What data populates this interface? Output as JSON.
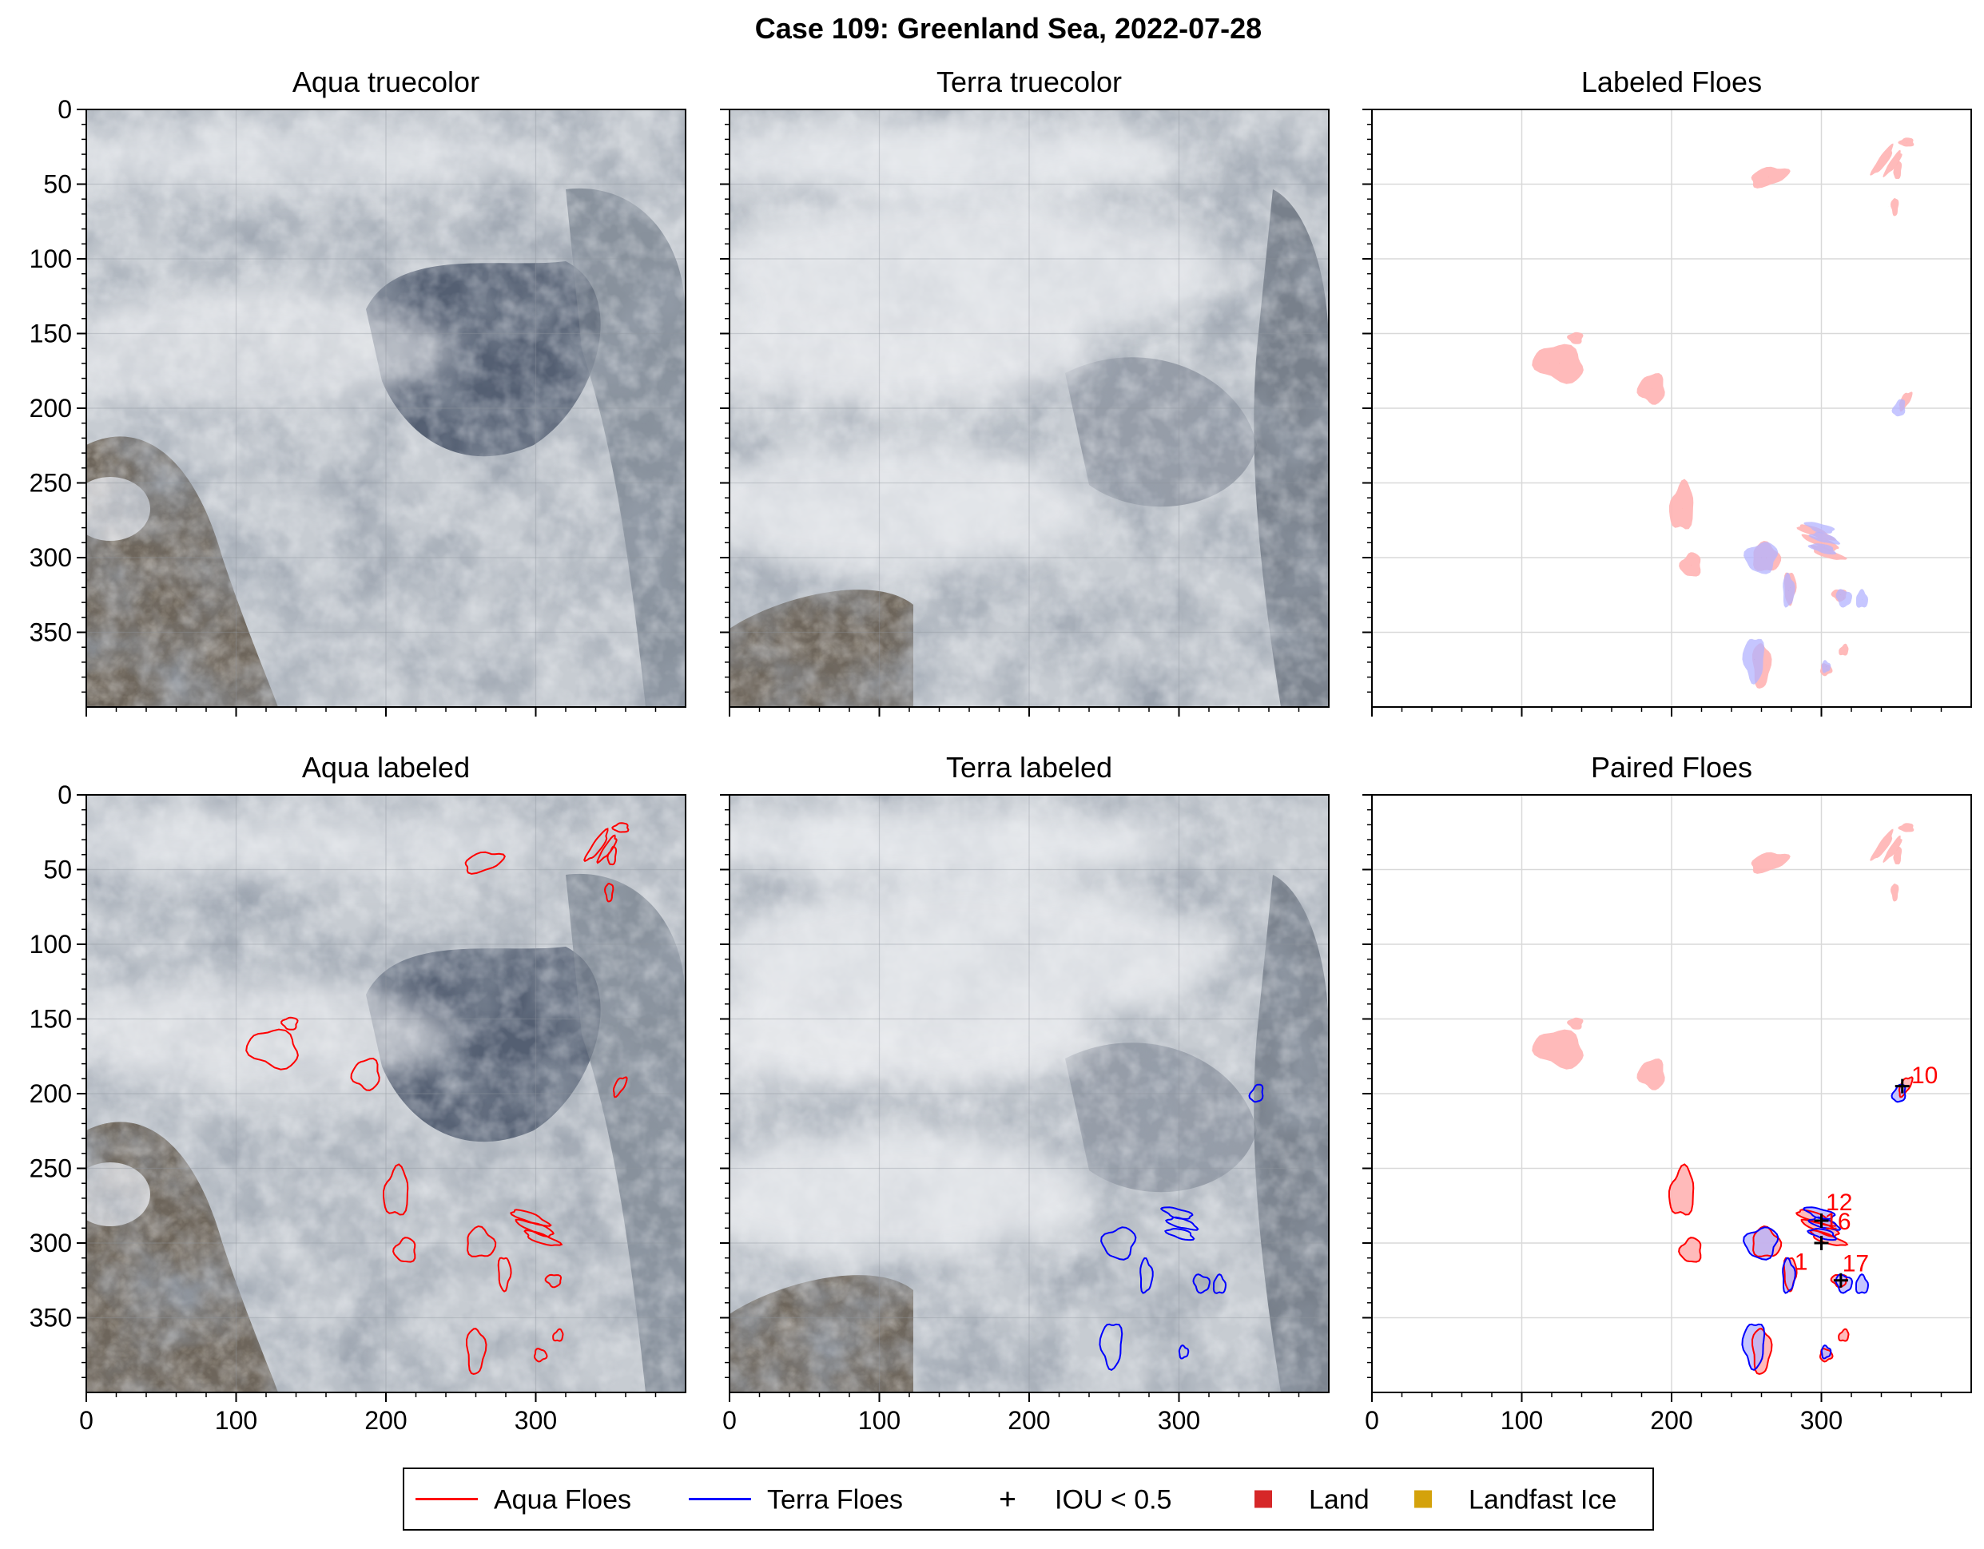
{
  "figure": {
    "suptitle": "Case 109: Greenland Sea, 2022-07-28"
  },
  "legend": {
    "entries": [
      {
        "label": "Aqua Floes",
        "kind": "line",
        "color": "#ff0000"
      },
      {
        "label": "Terra Floes",
        "kind": "line",
        "color": "#0000ff"
      },
      {
        "label": "IOU < 0.5",
        "kind": "plus",
        "color": "#000000"
      },
      {
        "label": "Land",
        "kind": "square",
        "color": "#d62728"
      },
      {
        "label": "Landfast Ice",
        "kind": "square",
        "color": "#d4a20b"
      }
    ]
  },
  "colors": {
    "aqua": "#ff0000",
    "terra": "#0000ff",
    "aqua_fill": "#ffb3b3",
    "terra_fill": "#b3b3ff",
    "grid": "#d9d9d9",
    "land": "#d62728",
    "landfast": "#d4a20b"
  },
  "chart_data": [
    {
      "id": "aqua-truecolor",
      "type": "image",
      "title": "Aqua truecolor",
      "xlim": [
        0,
        400
      ],
      "ylim": [
        400,
        0
      ],
      "xticks": [
        0,
        100,
        200,
        300
      ],
      "yticks": [
        0,
        50,
        100,
        150,
        200,
        250,
        300,
        350
      ],
      "show_xticklabels": false,
      "show_yticklabels": true,
      "background": "satellite imagery"
    },
    {
      "id": "terra-truecolor",
      "type": "image",
      "title": "Terra truecolor",
      "xlim": [
        0,
        400
      ],
      "ylim": [
        400,
        0
      ],
      "xticks": [
        0,
        100,
        200,
        300
      ],
      "yticks": [
        0,
        50,
        100,
        150,
        200,
        250,
        300,
        350
      ],
      "show_xticklabels": false,
      "show_yticklabels": false,
      "background": "satellite imagery"
    },
    {
      "id": "labeled-floes",
      "type": "scatter",
      "title": "Labeled Floes",
      "xlim": [
        0,
        400
      ],
      "ylim": [
        400,
        0
      ],
      "xticks": [
        0,
        100,
        200,
        300
      ],
      "yticks": [
        0,
        50,
        100,
        150,
        200,
        250,
        300,
        350
      ],
      "show_xticklabels": false,
      "show_yticklabels": false,
      "grid": true,
      "aqua_floes": [
        {
          "x": 265,
          "y": 45
        },
        {
          "x": 345,
          "y": 32
        },
        {
          "x": 357,
          "y": 22
        },
        {
          "x": 345,
          "y": 65
        },
        {
          "x": 125,
          "y": 170
        },
        {
          "x": 136,
          "y": 152
        },
        {
          "x": 187,
          "y": 187
        },
        {
          "x": 354,
          "y": 195
        },
        {
          "x": 207,
          "y": 267
        },
        {
          "x": 213,
          "y": 305
        },
        {
          "x": 263,
          "y": 300
        },
        {
          "x": 296,
          "y": 283
        },
        {
          "x": 302,
          "y": 290
        },
        {
          "x": 306,
          "y": 297
        },
        {
          "x": 279,
          "y": 320
        },
        {
          "x": 313,
          "y": 325
        },
        {
          "x": 263,
          "y": 372
        },
        {
          "x": 304,
          "y": 375
        },
        {
          "x": 315,
          "y": 360
        }
      ],
      "terra_floes": [
        {
          "x": 352,
          "y": 200
        },
        {
          "x": 260,
          "y": 300
        },
        {
          "x": 300,
          "y": 280
        },
        {
          "x": 302,
          "y": 292
        },
        {
          "x": 278,
          "y": 322
        },
        {
          "x": 315,
          "y": 327
        },
        {
          "x": 327,
          "y": 328
        },
        {
          "x": 255,
          "y": 368
        },
        {
          "x": 303,
          "y": 373
        }
      ]
    },
    {
      "id": "aqua-labeled",
      "type": "image",
      "title": "Aqua labeled",
      "xlim": [
        0,
        400
      ],
      "ylim": [
        400,
        0
      ],
      "xticks": [
        0,
        100,
        200,
        300
      ],
      "yticks": [
        0,
        50,
        100,
        150,
        200,
        250,
        300,
        350
      ],
      "show_xticklabels": true,
      "show_yticklabels": true,
      "background": "satellite imagery",
      "outline_color": "aqua"
    },
    {
      "id": "terra-labeled",
      "type": "image",
      "title": "Terra labeled",
      "xlim": [
        0,
        400
      ],
      "ylim": [
        400,
        0
      ],
      "xticks": [
        0,
        100,
        200,
        300
      ],
      "yticks": [
        0,
        50,
        100,
        150,
        200,
        250,
        300,
        350
      ],
      "show_xticklabels": true,
      "show_yticklabels": false,
      "background": "satellite imagery",
      "outline_color": "terra"
    },
    {
      "id": "paired-floes",
      "type": "scatter",
      "title": "Paired Floes",
      "xlim": [
        0,
        400
      ],
      "ylim": [
        400,
        0
      ],
      "xticks": [
        0,
        100,
        200,
        300
      ],
      "yticks": [
        0,
        50,
        100,
        150,
        200,
        250,
        300,
        350
      ],
      "show_xticklabels": true,
      "show_yticklabels": false,
      "grid": true,
      "pair_labels": [
        {
          "text": "10",
          "x": 360,
          "y": 193
        },
        {
          "text": "12",
          "x": 303,
          "y": 278
        },
        {
          "text": "16",
          "x": 302,
          "y": 291
        },
        {
          "text": "1",
          "x": 282,
          "y": 318
        },
        {
          "text": "17",
          "x": 314,
          "y": 319
        }
      ],
      "iou_markers": [
        {
          "x": 354,
          "y": 195
        },
        {
          "x": 300,
          "y": 285
        },
        {
          "x": 300,
          "y": 300
        },
        {
          "x": 313,
          "y": 325
        }
      ]
    }
  ]
}
